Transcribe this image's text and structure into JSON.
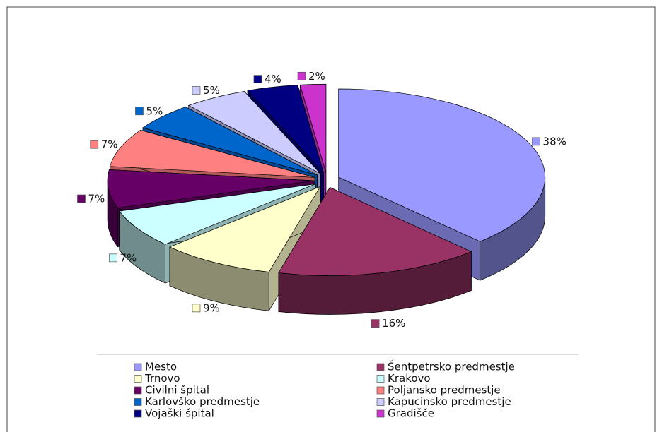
{
  "chart_data": {
    "type": "pie3d",
    "categories": [
      "Mesto",
      "Šentpetrsko predmestje",
      "Trnovo",
      "Krakovo",
      "Civilni špital",
      "Poljansko predmestje",
      "Karlovško predmestje",
      "Kapucinsko predmestje",
      "Vojaški špital",
      "Gradišče"
    ],
    "values": [
      38,
      16,
      9,
      7,
      7,
      7,
      5,
      5,
      4,
      2
    ],
    "value_labels": [
      "38%",
      "16%",
      "9%",
      "7%",
      "7%",
      "7%",
      "5%",
      "5%",
      "4%",
      "2%"
    ],
    "colors": [
      "#9999ff",
      "#993366",
      "#ffffcc",
      "#ccffff",
      "#660066",
      "#ff8080",
      "#0066cc",
      "#ccccff",
      "#000080",
      "#cc33cc"
    ],
    "legend": "bottom"
  }
}
